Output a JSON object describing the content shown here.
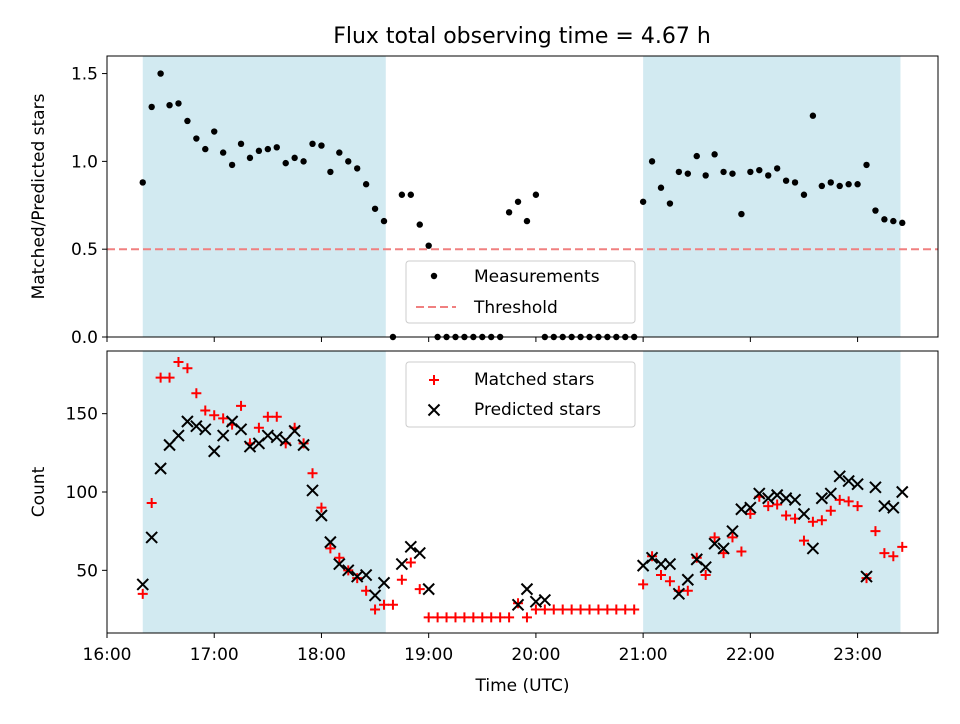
{
  "title": "Flux total observing time = 4.67 h",
  "chart_data": [
    {
      "type": "scatter",
      "ylabel": "Matched/Predicted stars",
      "xlabel": "",
      "xlim": [
        "16:00",
        "23:45"
      ],
      "ylim": [
        0,
        1.6
      ],
      "yticks": [
        "0.0",
        "0.5",
        "1.0",
        "1.5"
      ],
      "threshold": {
        "label": "Threshold",
        "value": 0.5,
        "color": "#f08080"
      },
      "shaded_intervals": [
        [
          "16:20",
          "18:36"
        ],
        [
          "21:00",
          "23:24"
        ]
      ],
      "shade_color": "#add8e6",
      "legend": {
        "placement": "lower-center",
        "measurements_label": "Measurements",
        "threshold_label": "Threshold"
      },
      "series": [
        {
          "name": "Measurements",
          "color": "#000000",
          "marker": "dot",
          "points": [
            [
              "16:20",
              0.88
            ],
            [
              "16:25",
              1.31
            ],
            [
              "16:30",
              1.5
            ],
            [
              "16:35",
              1.32
            ],
            [
              "16:40",
              1.33
            ],
            [
              "16:45",
              1.23
            ],
            [
              "16:50",
              1.13
            ],
            [
              "16:55",
              1.07
            ],
            [
              "17:00",
              1.17
            ],
            [
              "17:05",
              1.05
            ],
            [
              "17:10",
              0.98
            ],
            [
              "17:15",
              1.1
            ],
            [
              "17:20",
              1.02
            ],
            [
              "17:25",
              1.06
            ],
            [
              "17:30",
              1.07
            ],
            [
              "17:35",
              1.08
            ],
            [
              "17:40",
              0.99
            ],
            [
              "17:45",
              1.02
            ],
            [
              "17:50",
              1.0
            ],
            [
              "17:55",
              1.1
            ],
            [
              "18:00",
              1.09
            ],
            [
              "18:05",
              0.94
            ],
            [
              "18:10",
              1.05
            ],
            [
              "18:15",
              1.0
            ],
            [
              "18:20",
              0.96
            ],
            [
              "18:25",
              0.87
            ],
            [
              "18:30",
              0.73
            ],
            [
              "18:35",
              0.66
            ],
            [
              "18:40",
              0.0
            ],
            [
              "18:45",
              0.81
            ],
            [
              "18:50",
              0.81
            ],
            [
              "18:55",
              0.64
            ],
            [
              "19:00",
              0.52
            ],
            [
              "19:05",
              0.0
            ],
            [
              "19:10",
              0.0
            ],
            [
              "19:15",
              0.0
            ],
            [
              "19:20",
              0.0
            ],
            [
              "19:25",
              0.0
            ],
            [
              "19:30",
              0.0
            ],
            [
              "19:35",
              0.0
            ],
            [
              "19:40",
              0.0
            ],
            [
              "19:45",
              0.71
            ],
            [
              "19:50",
              0.77
            ],
            [
              "19:55",
              0.66
            ],
            [
              "20:00",
              0.81
            ],
            [
              "20:05",
              0.0
            ],
            [
              "20:10",
              0.0
            ],
            [
              "20:15",
              0.0
            ],
            [
              "20:20",
              0.0
            ],
            [
              "20:25",
              0.0
            ],
            [
              "20:30",
              0.0
            ],
            [
              "20:35",
              0.0
            ],
            [
              "20:40",
              0.0
            ],
            [
              "20:45",
              0.0
            ],
            [
              "20:50",
              0.0
            ],
            [
              "20:55",
              0.0
            ],
            [
              "21:00",
              0.77
            ],
            [
              "21:05",
              1.0
            ],
            [
              "21:10",
              0.85
            ],
            [
              "21:15",
              0.76
            ],
            [
              "21:20",
              0.94
            ],
            [
              "21:25",
              0.93
            ],
            [
              "21:30",
              1.03
            ],
            [
              "21:35",
              0.92
            ],
            [
              "21:40",
              1.04
            ],
            [
              "21:45",
              0.94
            ],
            [
              "21:50",
              0.93
            ],
            [
              "21:55",
              0.7
            ],
            [
              "22:00",
              0.94
            ],
            [
              "22:05",
              0.95
            ],
            [
              "22:10",
              0.92
            ],
            [
              "22:15",
              0.96
            ],
            [
              "22:20",
              0.89
            ],
            [
              "22:25",
              0.88
            ],
            [
              "22:30",
              0.81
            ],
            [
              "22:35",
              1.26
            ],
            [
              "22:40",
              0.86
            ],
            [
              "22:45",
              0.88
            ],
            [
              "22:50",
              0.86
            ],
            [
              "22:55",
              0.87
            ],
            [
              "23:00",
              0.87
            ],
            [
              "23:05",
              0.98
            ],
            [
              "23:10",
              0.72
            ],
            [
              "23:15",
              0.67
            ],
            [
              "23:20",
              0.66
            ],
            [
              "23:25",
              0.65
            ]
          ]
        }
      ]
    },
    {
      "type": "scatter",
      "ylabel": "Count",
      "xlabel": "Time (UTC)",
      "xlim": [
        "16:00",
        "23:45"
      ],
      "ylim": [
        10,
        190
      ],
      "yticks": [
        "50",
        "100",
        "150"
      ],
      "xticks": [
        "16:00",
        "17:00",
        "18:00",
        "19:00",
        "20:00",
        "21:00",
        "22:00",
        "23:00"
      ],
      "shaded_intervals": [
        [
          "16:20",
          "18:36"
        ],
        [
          "21:00",
          "23:24"
        ]
      ],
      "shade_color": "#add8e6",
      "legend": {
        "placement": "top-center",
        "matched_label": "Matched stars",
        "predicted_label": "Predicted stars"
      },
      "series": [
        {
          "name": "Matched stars",
          "color": "#ff0000",
          "marker": "plus",
          "points": [
            [
              "16:20",
              35
            ],
            [
              "16:25",
              93
            ],
            [
              "16:30",
              173
            ],
            [
              "16:35",
              173
            ],
            [
              "16:40",
              183
            ],
            [
              "16:45",
              179
            ],
            [
              "16:50",
              163
            ],
            [
              "16:55",
              152
            ],
            [
              "17:00",
              149
            ],
            [
              "17:05",
              147
            ],
            [
              "17:10",
              143
            ],
            [
              "17:15",
              155
            ],
            [
              "17:20",
              131
            ],
            [
              "17:25",
              141
            ],
            [
              "17:30",
              148
            ],
            [
              "17:35",
              148
            ],
            [
              "17:40",
              131
            ],
            [
              "17:45",
              141
            ],
            [
              "17:50",
              131
            ],
            [
              "17:55",
              112
            ],
            [
              "18:00",
              90
            ],
            [
              "18:05",
              64
            ],
            [
              "18:10",
              58
            ],
            [
              "18:15",
              50
            ],
            [
              "18:20",
              45
            ],
            [
              "18:25",
              37
            ],
            [
              "18:30",
              25
            ],
            [
              "18:35",
              28
            ],
            [
              "18:40",
              28
            ],
            [
              "18:45",
              44
            ],
            [
              "18:50",
              55
            ],
            [
              "18:55",
              38
            ],
            [
              "19:00",
              20
            ],
            [
              "19:05",
              20
            ],
            [
              "19:10",
              20
            ],
            [
              "19:15",
              20
            ],
            [
              "19:20",
              20
            ],
            [
              "19:25",
              20
            ],
            [
              "19:30",
              20
            ],
            [
              "19:35",
              20
            ],
            [
              "19:40",
              20
            ],
            [
              "19:45",
              20
            ],
            [
              "19:50",
              29
            ],
            [
              "19:55",
              20
            ],
            [
              "20:00",
              25
            ],
            [
              "20:05",
              25
            ],
            [
              "20:10",
              25
            ],
            [
              "20:15",
              25
            ],
            [
              "20:20",
              25
            ],
            [
              "20:25",
              25
            ],
            [
              "20:30",
              25
            ],
            [
              "20:35",
              25
            ],
            [
              "20:40",
              25
            ],
            [
              "20:45",
              25
            ],
            [
              "20:50",
              25
            ],
            [
              "20:55",
              25
            ],
            [
              "21:00",
              41
            ],
            [
              "21:05",
              59
            ],
            [
              "21:10",
              47
            ],
            [
              "21:15",
              43
            ],
            [
              "21:20",
              37
            ],
            [
              "21:25",
              37
            ],
            [
              "21:30",
              58
            ],
            [
              "21:35",
              47
            ],
            [
              "21:40",
              71
            ],
            [
              "21:45",
              61
            ],
            [
              "21:50",
              71
            ],
            [
              "21:55",
              62
            ],
            [
              "22:00",
              86
            ],
            [
              "22:05",
              97
            ],
            [
              "22:10",
              91
            ],
            [
              "22:15",
              92
            ],
            [
              "22:20",
              85
            ],
            [
              "22:25",
              83
            ],
            [
              "22:30",
              69
            ],
            [
              "22:35",
              81
            ],
            [
              "22:40",
              82
            ],
            [
              "22:45",
              88
            ],
            [
              "22:50",
              95
            ],
            [
              "22:55",
              94
            ],
            [
              "23:00",
              91
            ],
            [
              "23:05",
              45
            ],
            [
              "23:10",
              75
            ],
            [
              "23:15",
              61
            ],
            [
              "23:20",
              59
            ],
            [
              "23:25",
              65
            ]
          ]
        },
        {
          "name": "Predicted stars",
          "color": "#000000",
          "marker": "x",
          "points": [
            [
              "16:20",
              41
            ],
            [
              "16:25",
              71
            ],
            [
              "16:30",
              115
            ],
            [
              "16:35",
              130
            ],
            [
              "16:40",
              136
            ],
            [
              "16:45",
              145
            ],
            [
              "16:50",
              142
            ],
            [
              "16:55",
              140
            ],
            [
              "17:00",
              126
            ],
            [
              "17:05",
              136
            ],
            [
              "17:10",
              145
            ],
            [
              "17:15",
              140
            ],
            [
              "17:20",
              129
            ],
            [
              "17:25",
              131
            ],
            [
              "17:30",
              136
            ],
            [
              "17:35",
              135
            ],
            [
              "17:40",
              133
            ],
            [
              "17:45",
              139
            ],
            [
              "17:50",
              130
            ],
            [
              "17:55",
              101
            ],
            [
              "18:00",
              85
            ],
            [
              "18:05",
              68
            ],
            [
              "18:10",
              54
            ],
            [
              "18:15",
              50
            ],
            [
              "18:20",
              46
            ],
            [
              "18:25",
              47
            ],
            [
              "18:30",
              34
            ],
            [
              "18:35",
              42
            ],
            [
              "18:45",
              54
            ],
            [
              "18:50",
              65
            ],
            [
              "18:55",
              61
            ],
            [
              "19:00",
              38
            ],
            [
              "19:50",
              28
            ],
            [
              "19:55",
              38
            ],
            [
              "20:00",
              30
            ],
            [
              "20:05",
              31
            ],
            [
              "21:00",
              53
            ],
            [
              "21:05",
              58
            ],
            [
              "21:10",
              54
            ],
            [
              "21:15",
              54
            ],
            [
              "21:20",
              35
            ],
            [
              "21:25",
              44
            ],
            [
              "21:30",
              57
            ],
            [
              "21:35",
              52
            ],
            [
              "21:40",
              67
            ],
            [
              "21:45",
              64
            ],
            [
              "21:50",
              75
            ],
            [
              "21:55",
              89
            ],
            [
              "22:00",
              90
            ],
            [
              "22:05",
              99
            ],
            [
              "22:10",
              96
            ],
            [
              "22:15",
              98
            ],
            [
              "22:20",
              96
            ],
            [
              "22:25",
              95
            ],
            [
              "22:30",
              86
            ],
            [
              "22:35",
              64
            ],
            [
              "22:40",
              96
            ],
            [
              "22:45",
              99
            ],
            [
              "22:50",
              110
            ],
            [
              "22:55",
              107
            ],
            [
              "23:00",
              105
            ],
            [
              "23:05",
              46
            ],
            [
              "23:10",
              103
            ],
            [
              "23:15",
              91
            ],
            [
              "23:20",
              90
            ],
            [
              "23:25",
              100
            ]
          ]
        }
      ]
    }
  ]
}
